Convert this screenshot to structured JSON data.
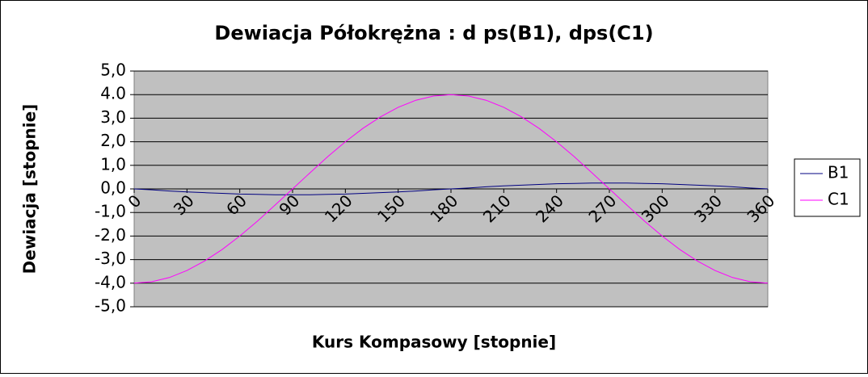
{
  "chart_data": {
    "type": "line",
    "title": "Dewiacja Półokrężna : d ps(B1), dps(C1)",
    "x_label": "Kurs Kompasowy  [stopnie]",
    "y_label": "Dewiacja [stopnie]",
    "x": [
      0,
      10,
      20,
      30,
      40,
      50,
      60,
      70,
      80,
      90,
      100,
      110,
      120,
      130,
      140,
      150,
      160,
      170,
      180,
      190,
      200,
      210,
      220,
      230,
      240,
      250,
      260,
      270,
      280,
      290,
      300,
      310,
      320,
      330,
      340,
      350,
      360
    ],
    "series": [
      {
        "name": "B1",
        "color": "#000080",
        "values": [
          0,
          -0.04,
          -0.09,
          -0.13,
          -0.16,
          -0.19,
          -0.22,
          -0.23,
          -0.25,
          -0.25,
          -0.25,
          -0.23,
          -0.22,
          -0.19,
          -0.16,
          -0.13,
          -0.09,
          -0.04,
          0,
          0.04,
          0.09,
          0.13,
          0.16,
          0.19,
          0.22,
          0.23,
          0.25,
          0.25,
          0.25,
          0.23,
          0.22,
          0.19,
          0.16,
          0.13,
          0.09,
          0.04,
          0
        ]
      },
      {
        "name": "C1",
        "color": "#ff00ff",
        "values": [
          -4,
          -3.94,
          -3.76,
          -3.46,
          -3.06,
          -2.57,
          -2,
          -1.37,
          -0.69,
          0,
          0.69,
          1.37,
          2,
          2.57,
          3.06,
          3.46,
          3.76,
          3.94,
          4,
          3.94,
          3.76,
          3.46,
          3.06,
          2.57,
          2,
          1.37,
          0.69,
          0,
          -0.69,
          -1.37,
          -2,
          -2.57,
          -3.06,
          -3.46,
          -3.76,
          -3.94,
          -4
        ]
      }
    ],
    "xlim": [
      0,
      360
    ],
    "xticks": [
      0,
      30,
      60,
      90,
      120,
      150,
      180,
      210,
      240,
      270,
      300,
      330,
      360
    ],
    "ylim": [
      -5,
      5
    ],
    "yticks": [
      {
        "value": 5,
        "label": "5,0"
      },
      {
        "value": 4,
        "label": "4.0"
      },
      {
        "value": 3,
        "label": "3,0"
      },
      {
        "value": 2,
        "label": "2,0"
      },
      {
        "value": 1,
        "label": "1,0"
      },
      {
        "value": 0,
        "label": "0,0"
      },
      {
        "value": -1,
        "label": "-1,0"
      },
      {
        "value": -2,
        "label": "-2,0"
      },
      {
        "value": -3,
        "label": "-3,0"
      },
      {
        "value": -4,
        "label": "-4,0"
      },
      {
        "value": -5,
        "label": "-5,0"
      }
    ],
    "grid": true,
    "plot_background": "#c0c0c0",
    "legend_position": "right"
  }
}
